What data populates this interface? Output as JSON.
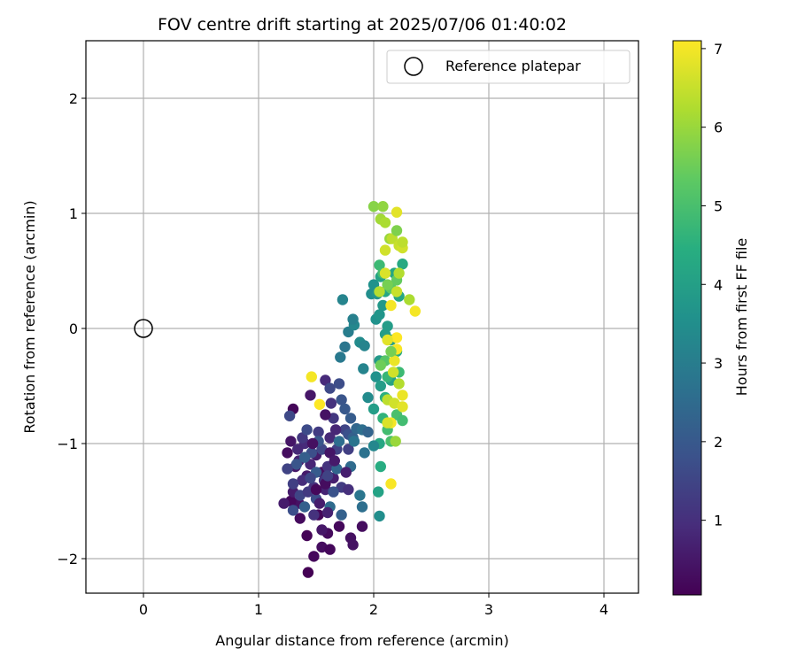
{
  "chart_data": {
    "type": "scatter",
    "title": "FOV centre drift starting at 2025/07/06 01:40:02",
    "xlabel": "Angular distance from reference (arcmin)",
    "ylabel": "Rotation from reference (arcmin)",
    "xlim": [
      -0.5,
      4.3
    ],
    "ylim": [
      -2.3,
      2.5
    ],
    "xticks": [
      0,
      1,
      2,
      3,
      4
    ],
    "yticks": [
      -2,
      -1,
      0,
      1,
      2
    ],
    "grid": true,
    "legend": {
      "placement": "top-right",
      "entries": [
        "Reference platepar"
      ]
    },
    "colorbar": {
      "label": "Hours from first FF file",
      "colormap": "viridis",
      "range": [
        0.05,
        7.1
      ],
      "ticks": [
        1,
        2,
        3,
        4,
        5,
        6,
        7
      ]
    },
    "series": [
      {
        "name": "Reference platepar",
        "marker": "open-circle",
        "points": [
          [
            0,
            0,
            null
          ]
        ]
      },
      {
        "marker": "filled-circle",
        "points": [
          [
            1.43,
            -2.12,
            0.05
          ],
          [
            1.48,
            -1.98,
            0.2
          ],
          [
            1.42,
            -1.8,
            0.1
          ],
          [
            1.52,
            -1.62,
            0.15
          ],
          [
            1.55,
            -1.9,
            0.3
          ],
          [
            1.6,
            -1.78,
            0.25
          ],
          [
            1.62,
            -1.92,
            0.18
          ],
          [
            1.7,
            -1.72,
            0.2
          ],
          [
            1.8,
            -1.82,
            0.35
          ],
          [
            1.9,
            -1.72,
            0.3
          ],
          [
            1.82,
            -1.88,
            0.4
          ],
          [
            1.35,
            -1.52,
            0.4
          ],
          [
            1.28,
            -1.5,
            0.2
          ],
          [
            1.3,
            -1.42,
            0.6
          ],
          [
            1.32,
            -1.2,
            0.5
          ],
          [
            1.25,
            -1.08,
            0.3
          ],
          [
            1.28,
            -0.98,
            0.45
          ],
          [
            1.3,
            -0.7,
            0.15
          ],
          [
            1.27,
            -0.76,
            1.6
          ],
          [
            1.35,
            -1.15,
            0.7
          ],
          [
            1.4,
            -1.0,
            0.9
          ],
          [
            1.42,
            -1.28,
            0.55
          ],
          [
            1.45,
            -1.18,
            0.8
          ],
          [
            1.48,
            -1.38,
            1.0
          ],
          [
            1.5,
            -1.1,
            0.6
          ],
          [
            1.52,
            -0.9,
            1.3
          ],
          [
            1.55,
            -1.25,
            0.35
          ],
          [
            1.58,
            -1.4,
            0.75
          ],
          [
            1.6,
            -1.2,
            1.1
          ],
          [
            1.62,
            -0.95,
            0.85
          ],
          [
            1.65,
            -1.3,
            0.65
          ],
          [
            1.68,
            -1.05,
            1.4
          ],
          [
            1.45,
            -0.58,
            0.5
          ],
          [
            1.58,
            -0.45,
            0.9
          ],
          [
            1.62,
            -0.52,
            1.6
          ],
          [
            1.65,
            -0.78,
            1.2
          ],
          [
            1.7,
            -0.48,
            1.7
          ],
          [
            1.72,
            -0.62,
            1.9
          ],
          [
            1.75,
            -0.7,
            2.0
          ],
          [
            1.75,
            -0.88,
            1.5
          ],
          [
            1.78,
            -0.92,
            1.8
          ],
          [
            1.8,
            -0.78,
            2.1
          ],
          [
            1.82,
            -0.95,
            2.2
          ],
          [
            1.85,
            -0.87,
            2.4
          ],
          [
            1.9,
            -0.88,
            2.6
          ],
          [
            1.92,
            -1.08,
            2.7
          ],
          [
            1.95,
            -0.9,
            2.3
          ],
          [
            1.8,
            -1.2,
            2.5
          ],
          [
            1.88,
            -1.45,
            2.8
          ],
          [
            1.9,
            -1.55,
            2.6
          ],
          [
            1.72,
            -1.62,
            2.2
          ],
          [
            1.72,
            -1.38,
            1.3
          ],
          [
            1.4,
            -1.55,
            2.2
          ],
          [
            1.5,
            -1.48,
            1.7
          ],
          [
            1.78,
            -1.4,
            1.0
          ],
          [
            1.62,
            -1.55,
            2.5
          ],
          [
            1.36,
            -1.45,
            1.5
          ],
          [
            1.33,
            -1.18,
            1.9
          ],
          [
            1.38,
            -1.32,
            0.95
          ],
          [
            1.43,
            -1.42,
            1.25
          ],
          [
            1.46,
            -1.08,
            1.75
          ],
          [
            1.5,
            -1.25,
            2.05
          ],
          [
            1.55,
            -1.05,
            1.55
          ],
          [
            1.57,
            -1.32,
            1.15
          ],
          [
            1.62,
            -1.08,
            0.45
          ],
          [
            1.65,
            -1.42,
            1.85
          ],
          [
            1.68,
            -1.22,
            2.35
          ],
          [
            1.6,
            -1.6,
            0.7
          ],
          [
            1.55,
            -1.75,
            0.5
          ],
          [
            1.48,
            -1.62,
            1.05
          ],
          [
            1.36,
            -1.65,
            0.25
          ],
          [
            1.3,
            -1.35,
            1.35
          ],
          [
            1.22,
            -1.52,
            0.6
          ],
          [
            1.25,
            -1.22,
            1.45
          ],
          [
            1.38,
            -0.95,
            1.2
          ],
          [
            1.42,
            -0.88,
            1.65
          ],
          [
            1.58,
            -0.75,
            0.4
          ],
          [
            1.63,
            -0.65,
            1.05
          ],
          [
            1.67,
            -0.88,
            0.8
          ],
          [
            1.52,
            -0.98,
            1.95
          ],
          [
            1.7,
            -0.98,
            2.55
          ],
          [
            1.78,
            -1.05,
            1.35
          ],
          [
            1.83,
            -0.98,
            2.75
          ],
          [
            1.5,
            -1.4,
            0.2
          ],
          [
            1.53,
            -1.52,
            0.6
          ],
          [
            1.45,
            -1.3,
            1.55
          ],
          [
            1.34,
            -1.05,
            0.85
          ],
          [
            1.4,
            -1.12,
            2.15
          ],
          [
            1.71,
            -0.25,
            2.9
          ],
          [
            1.78,
            -0.03,
            3.0
          ],
          [
            1.73,
            0.25,
            3.2
          ],
          [
            1.75,
            -0.16,
            2.8
          ],
          [
            1.83,
            0.03,
            3.3
          ],
          [
            1.82,
            0.08,
            3.1
          ],
          [
            1.88,
            -0.12,
            3.4
          ],
          [
            1.92,
            -0.15,
            3.2
          ],
          [
            1.91,
            -0.35,
            3.2
          ],
          [
            1.98,
            0.3,
            3.5
          ],
          [
            2.0,
            0.38,
            3.6
          ],
          [
            2.03,
            0.3,
            3.7
          ],
          [
            1.95,
            -0.6,
            3.4
          ],
          [
            2.02,
            -0.42,
            3.6
          ],
          [
            2.05,
            -0.28,
            3.8
          ],
          [
            2.06,
            -0.5,
            3.9
          ],
          [
            2.08,
            0.2,
            3.8
          ],
          [
            2.12,
            0.02,
            3.9
          ],
          [
            2.02,
            0.08,
            3.6
          ],
          [
            2.05,
            0.12,
            3.7
          ],
          [
            2.0,
            -0.7,
            3.95
          ],
          [
            2.06,
            0.45,
            4.1
          ],
          [
            2.15,
            -0.1,
            4.0
          ],
          [
            2.1,
            0.32,
            4.2
          ],
          [
            2.18,
            0.48,
            4.2
          ],
          [
            2.1,
            -0.05,
            3.9
          ],
          [
            2.15,
            -0.45,
            4.1
          ],
          [
            2.2,
            -0.2,
            4.3
          ],
          [
            2.22,
            0.28,
            4.2
          ],
          [
            2.25,
            0.56,
            4.3
          ],
          [
            2.06,
            -1.2,
            4.4
          ],
          [
            2.05,
            -1.0,
            4.2
          ],
          [
            2.04,
            -1.42,
            4.1
          ],
          [
            2.05,
            -1.63,
            3.5
          ],
          [
            2.0,
            -1.02,
            3.3
          ],
          [
            2.08,
            -0.78,
            4.6
          ],
          [
            2.1,
            -0.6,
            4.5
          ],
          [
            2.12,
            -0.42,
            4.7
          ],
          [
            2.05,
            0.55,
            4.8
          ],
          [
            2.08,
            0.48,
            4.9
          ],
          [
            2.22,
            -0.38,
            4.8
          ],
          [
            2.12,
            -0.88,
            4.9
          ],
          [
            2.15,
            -0.98,
            5.0
          ],
          [
            2.2,
            -0.75,
            5.0
          ],
          [
            2.25,
            -0.8,
            4.9
          ],
          [
            2.1,
            -0.28,
            5.2
          ],
          [
            2.15,
            0.35,
            5.3
          ],
          [
            2.2,
            0.42,
            5.4
          ],
          [
            2.12,
            0.38,
            5.6
          ],
          [
            2.0,
            1.06,
            5.8
          ],
          [
            2.08,
            1.06,
            5.9
          ],
          [
            2.06,
            0.95,
            6.1
          ],
          [
            2.1,
            0.92,
            6.2
          ],
          [
            2.14,
            0.78,
            6.0
          ],
          [
            2.16,
            0.78,
            6.4
          ],
          [
            2.2,
            0.85,
            5.7
          ],
          [
            2.22,
            0.48,
            6.3
          ],
          [
            2.2,
            0.32,
            6.5
          ],
          [
            2.22,
            0.72,
            6.5
          ],
          [
            2.25,
            0.7,
            6.6
          ],
          [
            2.31,
            0.25,
            6.2
          ],
          [
            2.2,
            1.01,
            6.8
          ],
          [
            2.36,
            0.15,
            7.0
          ],
          [
            2.15,
            0.2,
            7.0
          ],
          [
            2.1,
            0.48,
            6.7
          ],
          [
            2.05,
            0.32,
            6.3
          ],
          [
            2.18,
            -0.28,
            6.9
          ],
          [
            2.2,
            -0.18,
            7.05
          ],
          [
            2.17,
            -0.38,
            6.6
          ],
          [
            2.2,
            -0.08,
            7.1
          ],
          [
            2.12,
            -0.62,
            6.4
          ],
          [
            2.18,
            -0.65,
            6.6
          ],
          [
            2.25,
            -0.58,
            6.9
          ],
          [
            2.25,
            -0.68,
            6.8
          ],
          [
            2.22,
            -0.48,
            6.3
          ],
          [
            2.15,
            -0.82,
            7.0
          ],
          [
            2.12,
            -0.82,
            6.7
          ],
          [
            2.15,
            -1.35,
            7.05
          ],
          [
            2.19,
            -0.98,
            6.0
          ],
          [
            2.15,
            -0.2,
            5.6
          ],
          [
            2.12,
            -0.1,
            6.8
          ],
          [
            2.1,
            0.68,
            6.6
          ],
          [
            2.25,
            0.75,
            6.4
          ],
          [
            2.06,
            -0.32,
            5.5
          ],
          [
            1.46,
            -0.42,
            7.0
          ],
          [
            1.53,
            -0.66,
            7.1
          ],
          [
            1.3,
            -1.58,
            1.75
          ],
          [
            1.58,
            -1.35,
            0.3
          ],
          [
            1.66,
            -1.15,
            0.55
          ],
          [
            1.47,
            -1.0,
            0.35
          ],
          [
            1.6,
            -1.28,
            1.45
          ],
          [
            1.76,
            -1.25,
            0.65
          ]
        ]
      }
    ]
  }
}
